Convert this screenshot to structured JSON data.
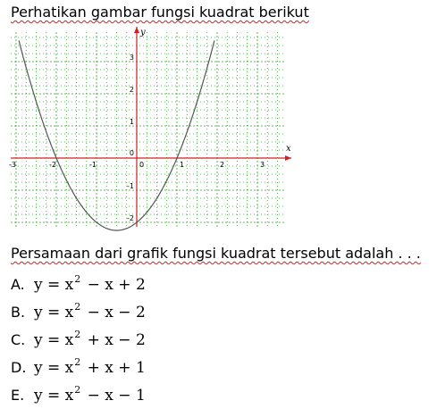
{
  "title": "Perhatikan gambar fungsi kuadrat berikut",
  "question": "Persamaan dari grafik fungsi kuadrat tersebut adalah . . .",
  "graph": {
    "x_axis_label": "x",
    "y_axis_label": "y",
    "x_ticks": [
      "-3",
      "-2",
      "-1",
      "0",
      "1",
      "2",
      "3"
    ],
    "y_ticks": [
      "3",
      "2",
      "1",
      "0",
      "-1",
      "-2"
    ],
    "x_range": [
      -3,
      3.8
    ],
    "y_range": [
      -2.5,
      3.8
    ],
    "curve": {
      "a": 1,
      "b": 1,
      "c": -2
    },
    "grid_color": "#3a9b3a",
    "axis_color": "#d02020",
    "curve_color": "#555555"
  },
  "options": [
    {
      "letter": "A.",
      "pre": "y = x",
      "exp": "2",
      "post": " − x + 2"
    },
    {
      "letter": "B.",
      "pre": "y = x",
      "exp": "2",
      "post": " − x − 2"
    },
    {
      "letter": "C.",
      "pre": "y = x",
      "exp": "2",
      "post": " + x − 2"
    },
    {
      "letter": "D.",
      "pre": "y = x",
      "exp": "2",
      "post": " + x + 1"
    },
    {
      "letter": "E.",
      "pre": "y = x",
      "exp": "2",
      "post": " − x − 1"
    }
  ]
}
